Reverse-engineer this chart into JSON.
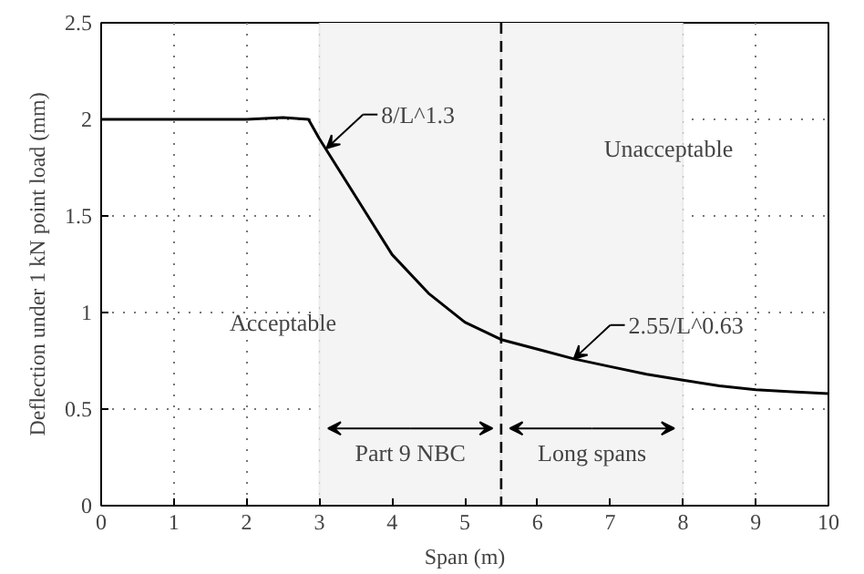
{
  "chart_data": {
    "type": "line",
    "xlabel": "Span (m)",
    "ylabel": "Deflection under 1 kN point load (mm)",
    "x": [
      0,
      1,
      2,
      2.5,
      2.85,
      3,
      3.5,
      4,
      4.5,
      5,
      5.5,
      6,
      6.5,
      7,
      7.5,
      8,
      8.5,
      9,
      9.5,
      10
    ],
    "series": [
      {
        "color": "#000000",
        "values": [
          2,
          2,
          2,
          2.01,
          2.0,
          1.9,
          1.6,
          1.3,
          1.1,
          0.95,
          0.86,
          0.81,
          0.76,
          0.72,
          0.68,
          0.65,
          0.62,
          0.6,
          0.59,
          0.58
        ]
      }
    ],
    "xlim": [
      0,
      10
    ],
    "ylim": [
      0,
      2.5
    ],
    "xticks": [
      0,
      1,
      2,
      3,
      4,
      5,
      6,
      7,
      8,
      9,
      10
    ],
    "yticks": [
      0,
      0.5,
      1,
      1.5,
      2,
      2.5
    ],
    "grid": true,
    "marker": "none",
    "line_style": "solid",
    "ref_lines": [
      {
        "axis": "x",
        "value": 5.5,
        "line_style": "dashed"
      }
    ],
    "bands": [
      {
        "axis": "x",
        "from": 3,
        "to": 5.5,
        "label": "Part 9 NBC",
        "color": "#f4f4f4"
      },
      {
        "axis": "x",
        "from": 5.5,
        "to": 8,
        "label": "Long spans",
        "color": "#f4f4f4"
      }
    ],
    "annotations": [
      {
        "text": "8/L^1.3",
        "x": 3.1,
        "y": 1.85
      },
      {
        "text": "2.55/L^0.63",
        "x": 6.5,
        "y": 0.76
      },
      "Unacceptable",
      "Acceptable"
    ]
  }
}
